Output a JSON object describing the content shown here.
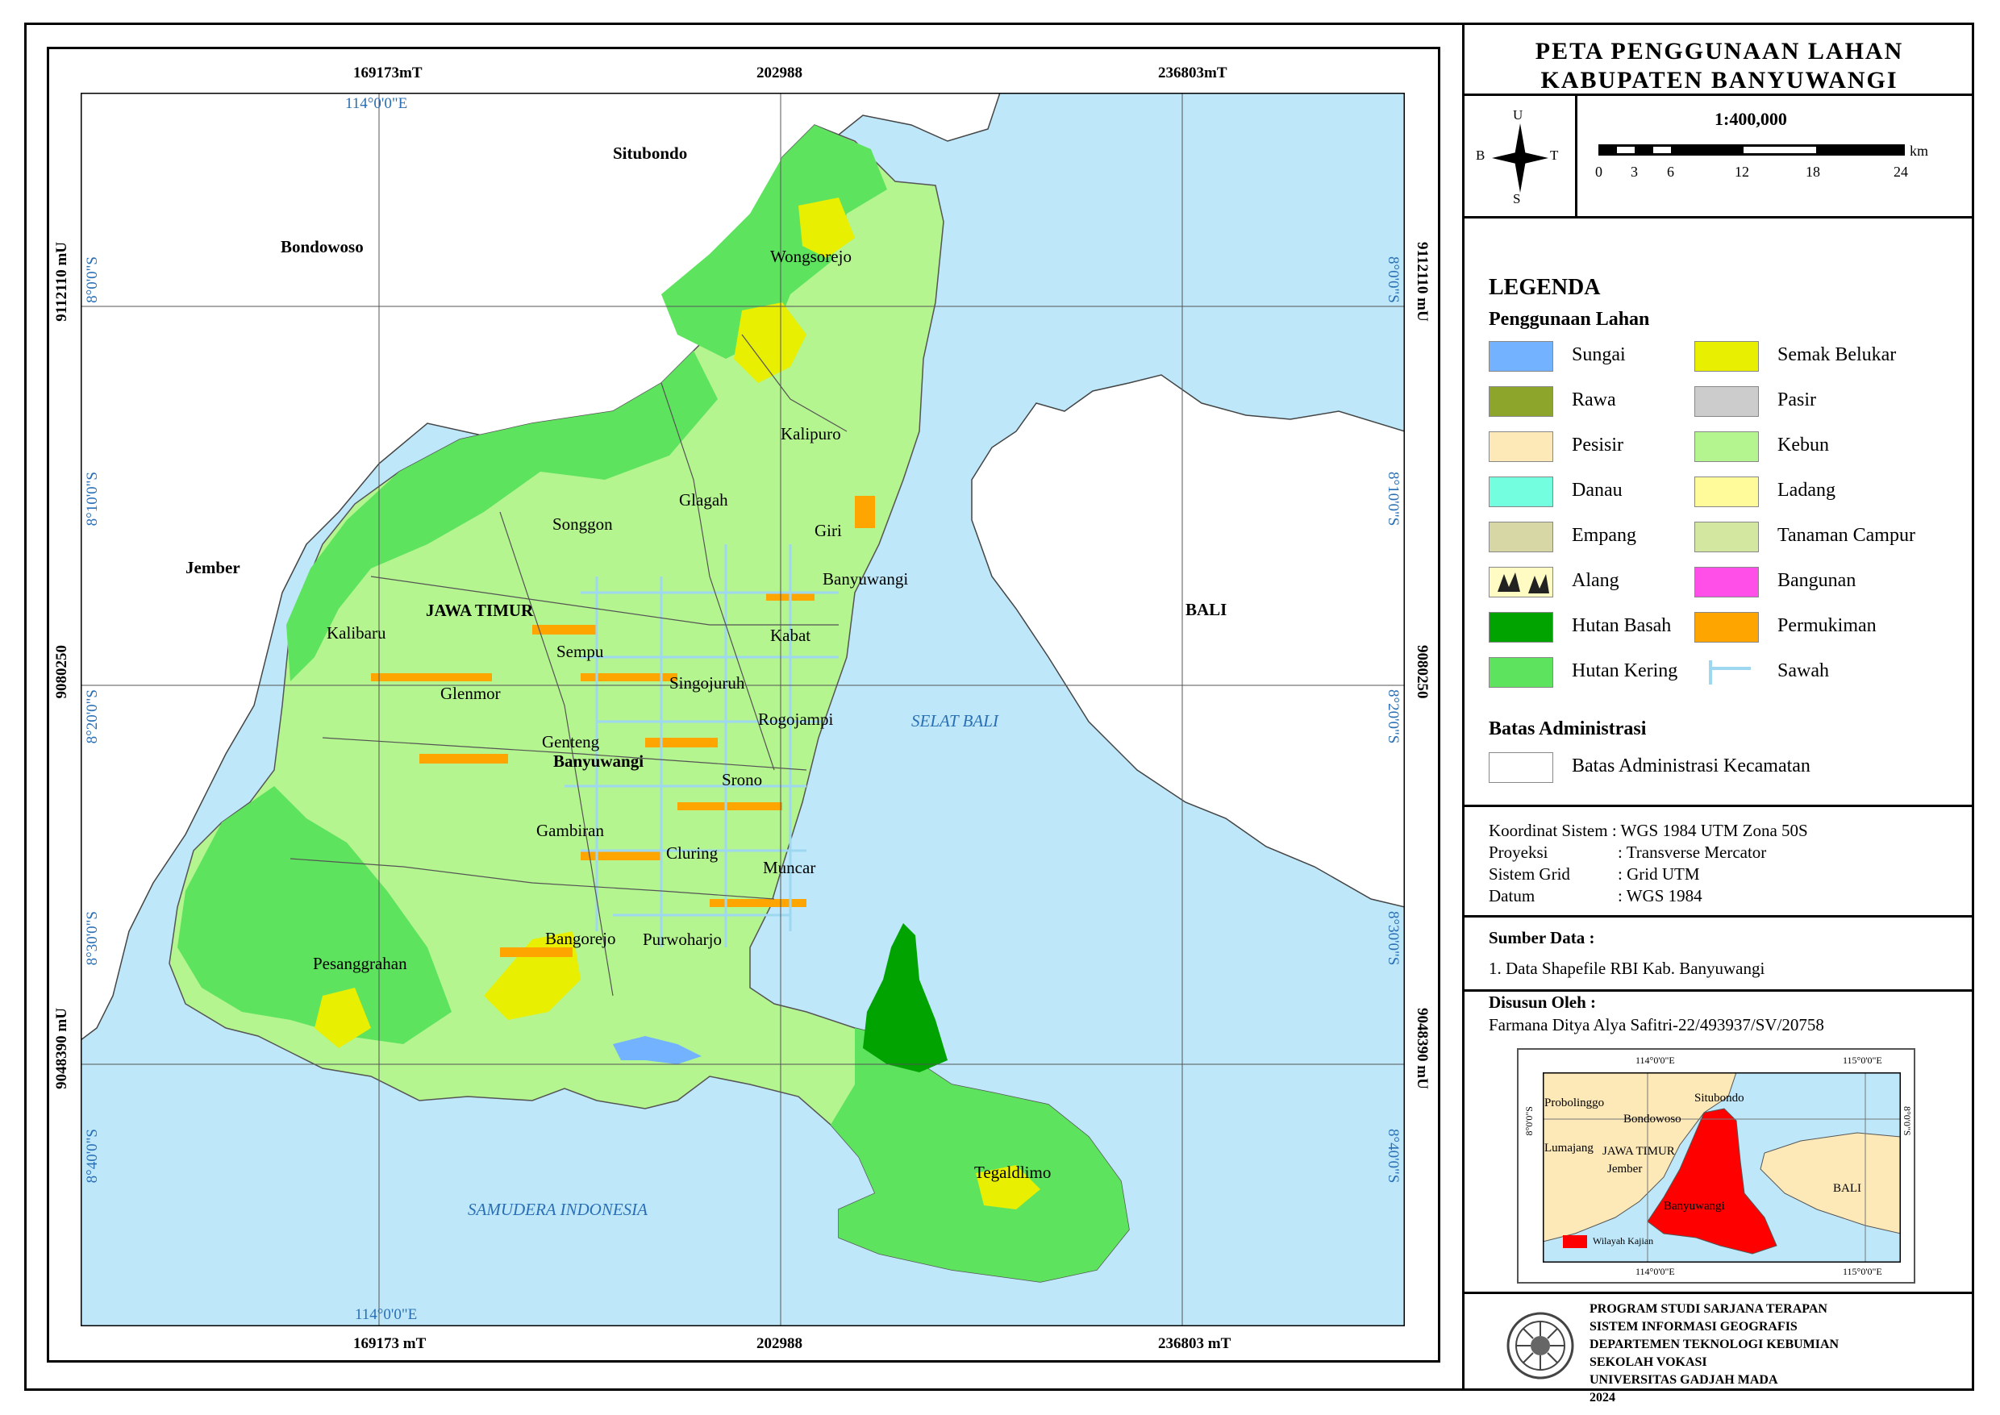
{
  "map": {
    "grid_top": [
      "169173mT",
      "202988",
      "236803mT"
    ],
    "grid_bottom": [
      "169173 mT",
      "202988",
      "236803 mT"
    ],
    "grid_left": [
      "9112110 mU",
      "9080250",
      "9048390 mU"
    ],
    "grid_right": [
      "9112110 mU",
      "9080250",
      "9048390 mU"
    ],
    "geo_top": "114°0'0\"E",
    "geo_bottom": "114°0'0\"E",
    "geo_left": [
      "8°0'0\"S",
      "8°10'0\"S",
      "8°20'0\"S",
      "8°30'0\"S",
      "8°40'0\"S"
    ],
    "geo_right": [
      "8°0'0\"S",
      "8°10'0\"S",
      "8°20'0\"S",
      "8°30'0\"S",
      "8°40'0\"S"
    ],
    "places": {
      "situbondo": "Situbondo",
      "bondowoso": "Bondowoso",
      "jember": "Jember",
      "jawa_timur": "JAWA TIMUR",
      "bali": "BALI",
      "selat_bali": "SELAT BALI",
      "samudera": "SAMUDERA INDONESIA",
      "wongsorejo": "Wongsorejo",
      "kalipuro": "Kalipuro",
      "glagah": "Glagah",
      "songgon": "Songgon",
      "giri": "Giri",
      "banyuwangi_city": "Banyuwangi",
      "kalibaru": "Kalibaru",
      "kabat": "Kabat",
      "sempu": "Sempu",
      "singojuruh": "Singojuruh",
      "glenmor": "Glenmor",
      "rogojampi": "Rogojampi",
      "genteng": "Genteng",
      "banyuwangi_reg": "Banyuwangi",
      "srono": "Srono",
      "gambiran": "Gambiran",
      "cluring": "Cluring",
      "muncar": "Muncar",
      "bangorejo": "Bangorejo",
      "purwoharjo": "Purwoharjo",
      "pesanggrahan": "Pesanggrahan",
      "tegaldlimo": "Tegaldlimo"
    }
  },
  "title": {
    "line1": "PETA PENGGUNAAN LAHAN",
    "line2": "KABUPATEN BANYUWANGI"
  },
  "compass": {
    "n": "U",
    "s": "S",
    "w": "B",
    "e": "T"
  },
  "scale": {
    "ratio": "1:400,000",
    "unit": "km",
    "ticks": [
      "0",
      "3",
      "6",
      "12",
      "18",
      "24"
    ]
  },
  "legend": {
    "heading": "LEGENDA",
    "subheading": "Penggunaan Lahan",
    "items_left": [
      {
        "label": "Sungai",
        "color": "#73b2ff"
      },
      {
        "label": "Rawa",
        "color": "#8ea52c"
      },
      {
        "label": "Pesisir",
        "color": "#fde8b8"
      },
      {
        "label": "Danau",
        "color": "#73ffdf"
      },
      {
        "label": "Empang",
        "color": "#d7d7a6"
      },
      {
        "label": "Alang",
        "color": "#fffbc2"
      },
      {
        "label": "Hutan Basah",
        "color": "#00a300"
      },
      {
        "label": "Hutan Kering",
        "color": "#5ee35e"
      }
    ],
    "items_right": [
      {
        "label": "Semak Belukar",
        "color": "#e8ef00"
      },
      {
        "label": "Pasir",
        "color": "#cccccc"
      },
      {
        "label": "Kebun",
        "color": "#b4f58f"
      },
      {
        "label": "Ladang",
        "color": "#fffa9a"
      },
      {
        "label": "Tanaman Campur",
        "color": "#d4e7a0"
      },
      {
        "label": "Bangunan",
        "color": "#ff4fe8"
      },
      {
        "label": "Permukiman",
        "color": "#ffa500"
      },
      {
        "label": "Sawah",
        "color": "#9ed8f0"
      }
    ],
    "admin_heading": "Batas Administrasi",
    "admin_item": "Batas Administrasi Kecamatan"
  },
  "coordinate_info": [
    {
      "key": "Koordinat Sistem",
      "value": ": WGS 1984 UTM Zona 50S"
    },
    {
      "key": "Proyeksi",
      "value": ": Transverse Mercator"
    },
    {
      "key": "Sistem Grid",
      "value": ": Grid UTM"
    },
    {
      "key": "Datum",
      "value": ": WGS 1984"
    }
  ],
  "source": {
    "heading": "Sumber Data :",
    "item": "1. Data Shapefile RBI Kab. Banyuwangi"
  },
  "author": {
    "heading": "Disusun Oleh :",
    "name": "Farmana Ditya Alya Safitri-22/493937/SV/20758"
  },
  "inset": {
    "coords_top": [
      "114°0'0\"E",
      "115°0'0\"E"
    ],
    "coords_bottom": [
      "114°0'0\"E",
      "115°0'0\"E"
    ],
    "coord_side": "8°0'0\"S",
    "places": [
      "Probolinggo",
      "Bondowoso",
      "Situbondo",
      "Lumajang",
      "JAWA TIMUR",
      "Jember",
      "Banyuwangi",
      "BALI"
    ],
    "legend_label": "Wilayah Kajian",
    "highlight": "#ff0000"
  },
  "institution": [
    "PROGRAM STUDI SARJANA TERAPAN",
    "SISTEM INFORMASI GEOGRAFIS",
    "DEPARTEMEN TEKNOLOGI KEBUMIAN",
    "SEKOLAH VOKASI",
    "UNIVERSITAS GADJAH MADA",
    "2024"
  ]
}
